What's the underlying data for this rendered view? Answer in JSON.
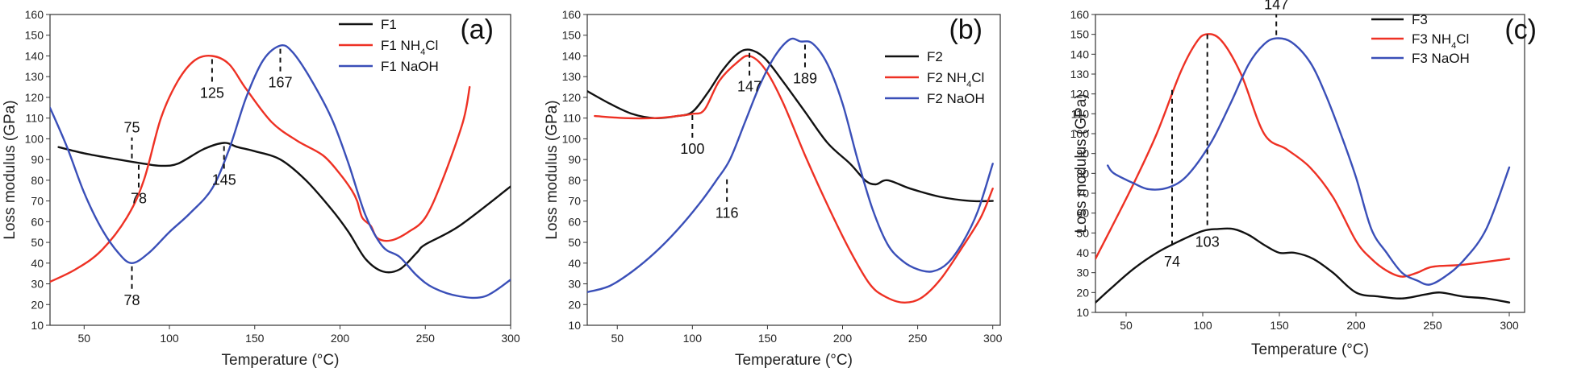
{
  "colors": {
    "black": "#111111",
    "red": "#ee3124",
    "blue": "#3a4fb8"
  },
  "chart_data": [
    {
      "type": "line",
      "panel_label": "(a)",
      "xlabel": "Temperature (°C)",
      "ylabel": "Loss modulus (GPa)",
      "xlim": [
        30,
        300
      ],
      "ylim": [
        10,
        160
      ],
      "xticks": [
        50,
        100,
        150,
        200,
        250,
        300
      ],
      "yticks": [
        10,
        20,
        30,
        40,
        50,
        60,
        70,
        80,
        90,
        100,
        110,
        120,
        130,
        140,
        150,
        160
      ],
      "legend_position": "top-right",
      "series": [
        {
          "name": "F1",
          "color": "black",
          "points": [
            [
              35,
              96
            ],
            [
              50,
              93
            ],
            [
              70,
              90
            ],
            [
              85,
              88
            ],
            [
              95,
              87
            ],
            [
              105,
              88
            ],
            [
              120,
              95
            ],
            [
              132,
              98
            ],
            [
              140,
              96
            ],
            [
              150,
              94
            ],
            [
              165,
              90
            ],
            [
              180,
              80
            ],
            [
              195,
              66
            ],
            [
              205,
              55
            ],
            [
              215,
              42
            ],
            [
              225,
              36
            ],
            [
              235,
              37
            ],
            [
              245,
              45
            ],
            [
              250,
              49
            ],
            [
              270,
              58
            ],
            [
              300,
              77
            ]
          ]
        },
        {
          "name": "F1 NH₄Cl",
          "color": "red",
          "points": [
            [
              30,
              31
            ],
            [
              45,
              37
            ],
            [
              60,
              46
            ],
            [
              75,
              62
            ],
            [
              85,
              80
            ],
            [
              95,
              110
            ],
            [
              105,
              128
            ],
            [
              115,
              138
            ],
            [
              125,
              140
            ],
            [
              135,
              136
            ],
            [
              145,
              124
            ],
            [
              160,
              108
            ],
            [
              175,
              99
            ],
            [
              190,
              92
            ],
            [
              200,
              83
            ],
            [
              207,
              75
            ],
            [
              210,
              70
            ],
            [
              213,
              62
            ],
            [
              218,
              58
            ],
            [
              222,
              52
            ],
            [
              230,
              51
            ],
            [
              240,
              55
            ],
            [
              250,
              62
            ],
            [
              260,
              80
            ],
            [
              272,
              108
            ],
            [
              276,
              125
            ]
          ]
        },
        {
          "name": "F1 NaOH",
          "color": "blue",
          "points": [
            [
              30,
              115
            ],
            [
              40,
              96
            ],
            [
              50,
              74
            ],
            [
              60,
              57
            ],
            [
              70,
              45
            ],
            [
              78,
              40
            ],
            [
              88,
              45
            ],
            [
              100,
              55
            ],
            [
              112,
              64
            ],
            [
              125,
              76
            ],
            [
              135,
              95
            ],
            [
              145,
              120
            ],
            [
              155,
              138
            ],
            [
              165,
              145
            ],
            [
              172,
              142
            ],
            [
              182,
              130
            ],
            [
              195,
              110
            ],
            [
              205,
              88
            ],
            [
              215,
              63
            ],
            [
              225,
              48
            ],
            [
              235,
              43
            ],
            [
              245,
              34
            ],
            [
              255,
              28
            ],
            [
              270,
              24
            ],
            [
              285,
              24
            ],
            [
              300,
              32
            ]
          ]
        }
      ],
      "annotations": [
        {
          "text": "75",
          "x": 78,
          "y": 89,
          "label_side": "above"
        },
        {
          "text": "78",
          "x": 82,
          "y": 89,
          "label_side": "below"
        },
        {
          "text": "125",
          "x": 125,
          "y": 140,
          "label_side": "below"
        },
        {
          "text": "145",
          "x": 132,
          "y": 98,
          "label_side": "below"
        },
        {
          "text": "167",
          "x": 165,
          "y": 145,
          "label_side": "below"
        },
        {
          "text": "78",
          "x": 78,
          "y": 40,
          "label_side": "below"
        }
      ]
    },
    {
      "type": "line",
      "panel_label": "(b)",
      "xlabel": "Temperature (°C)",
      "ylabel": "Loss modulus (GPa)",
      "xlim": [
        30,
        305
      ],
      "ylim": [
        10,
        160
      ],
      "xticks": [
        50,
        100,
        150,
        200,
        250,
        300
      ],
      "yticks": [
        10,
        20,
        30,
        40,
        50,
        60,
        70,
        80,
        90,
        100,
        110,
        120,
        130,
        140,
        150,
        160
      ],
      "legend_position": "top-right",
      "series": [
        {
          "name": "F2",
          "color": "black",
          "points": [
            [
              30,
              123
            ],
            [
              45,
              117
            ],
            [
              60,
              112
            ],
            [
              75,
              110
            ],
            [
              90,
              111
            ],
            [
              100,
              113
            ],
            [
              110,
              122
            ],
            [
              120,
              133
            ],
            [
              130,
              141
            ],
            [
              138,
              143
            ],
            [
              148,
              139
            ],
            [
              160,
              128
            ],
            [
              175,
              113
            ],
            [
              190,
              98
            ],
            [
              205,
              88
            ],
            [
              215,
              80
            ],
            [
              222,
              78
            ],
            [
              230,
              80
            ],
            [
              245,
              76
            ],
            [
              265,
              72
            ],
            [
              285,
              70
            ],
            [
              300,
              70
            ]
          ]
        },
        {
          "name": "F2 NH₄Cl",
          "color": "red",
          "points": [
            [
              35,
              111
            ],
            [
              55,
              110
            ],
            [
              75,
              110
            ],
            [
              90,
              111
            ],
            [
              100,
              112
            ],
            [
              108,
              114
            ],
            [
              118,
              128
            ],
            [
              130,
              137
            ],
            [
              138,
              140
            ],
            [
              148,
              134
            ],
            [
              160,
              118
            ],
            [
              175,
              92
            ],
            [
              190,
              68
            ],
            [
              205,
              46
            ],
            [
              218,
              30
            ],
            [
              228,
              24
            ],
            [
              240,
              21
            ],
            [
              252,
              23
            ],
            [
              265,
              32
            ],
            [
              280,
              48
            ],
            [
              292,
              62
            ],
            [
              300,
              76
            ]
          ]
        },
        {
          "name": "F2 NaOH",
          "color": "blue",
          "points": [
            [
              30,
              26
            ],
            [
              45,
              29
            ],
            [
              60,
              36
            ],
            [
              75,
              45
            ],
            [
              90,
              56
            ],
            [
              105,
              69
            ],
            [
              116,
              80
            ],
            [
              125,
              90
            ],
            [
              135,
              108
            ],
            [
              145,
              126
            ],
            [
              155,
              140
            ],
            [
              165,
              148
            ],
            [
              172,
              147
            ],
            [
              180,
              146
            ],
            [
              190,
              136
            ],
            [
              200,
              117
            ],
            [
              210,
              90
            ],
            [
              220,
              66
            ],
            [
              230,
              49
            ],
            [
              240,
              41
            ],
            [
              250,
              37
            ],
            [
              260,
              36
            ],
            [
              270,
              40
            ],
            [
              280,
              50
            ],
            [
              290,
              65
            ],
            [
              300,
              88
            ]
          ]
        }
      ],
      "annotations": [
        {
          "text": "100",
          "x": 100,
          "y": 113,
          "label_side": "below"
        },
        {
          "text": "147",
          "x": 138,
          "y": 143,
          "label_side": "below"
        },
        {
          "text": "189",
          "x": 175,
          "y": 147,
          "label_side": "below"
        },
        {
          "text": "116",
          "x": 123,
          "y": 82,
          "label_side": "below"
        }
      ]
    },
    {
      "type": "line",
      "panel_label": "(c)",
      "xlabel": "Temperature (°C)",
      "ylabel": "Loss modulus (GPa)",
      "xlim": [
        30,
        310
      ],
      "ylim": [
        10,
        160
      ],
      "xticks": [
        50,
        100,
        150,
        200,
        250,
        300
      ],
      "yticks": [
        10,
        20,
        30,
        40,
        50,
        60,
        70,
        80,
        90,
        100,
        110,
        120,
        130,
        140,
        150,
        160
      ],
      "legend_position": "top-right",
      "series": [
        {
          "name": "F3",
          "color": "black",
          "points": [
            [
              30,
              15
            ],
            [
              40,
              22
            ],
            [
              55,
              32
            ],
            [
              70,
              40
            ],
            [
              85,
              46
            ],
            [
              100,
              51
            ],
            [
              110,
              52
            ],
            [
              120,
              52
            ],
            [
              130,
              49
            ],
            [
              140,
              44
            ],
            [
              150,
              40
            ],
            [
              160,
              40
            ],
            [
              172,
              37
            ],
            [
              185,
              30
            ],
            [
              200,
              20
            ],
            [
              215,
              18
            ],
            [
              230,
              17
            ],
            [
              245,
              19
            ],
            [
              255,
              20
            ],
            [
              270,
              18
            ],
            [
              285,
              17
            ],
            [
              300,
              15
            ]
          ]
        },
        {
          "name": "F3 NH₄Cl",
          "color": "red",
          "points": [
            [
              30,
              37
            ],
            [
              40,
              52
            ],
            [
              55,
              75
            ],
            [
              70,
              100
            ],
            [
              85,
              130
            ],
            [
              95,
              145
            ],
            [
              102,
              150
            ],
            [
              112,
              147
            ],
            [
              125,
              130
            ],
            [
              140,
              100
            ],
            [
              155,
              92
            ],
            [
              170,
              83
            ],
            [
              185,
              68
            ],
            [
              200,
              46
            ],
            [
              210,
              37
            ],
            [
              220,
              31
            ],
            [
              230,
              28
            ],
            [
              240,
              30
            ],
            [
              250,
              33
            ],
            [
              270,
              34
            ],
            [
              300,
              37
            ]
          ]
        },
        {
          "name": "F3 NaOH",
          "color": "blue",
          "points": [
            [
              38,
              84
            ],
            [
              42,
              80
            ],
            [
              55,
              75
            ],
            [
              65,
              72
            ],
            [
              78,
              73
            ],
            [
              90,
              79
            ],
            [
              105,
              95
            ],
            [
              118,
              115
            ],
            [
              130,
              135
            ],
            [
              140,
              145
            ],
            [
              148,
              148
            ],
            [
              158,
              146
            ],
            [
              170,
              136
            ],
            [
              180,
              120
            ],
            [
              190,
              100
            ],
            [
              200,
              78
            ],
            [
              210,
              52
            ],
            [
              220,
              40
            ],
            [
              230,
              30
            ],
            [
              240,
              26
            ],
            [
              248,
              24
            ],
            [
              258,
              28
            ],
            [
              270,
              36
            ],
            [
              285,
              52
            ],
            [
              300,
              83
            ]
          ]
        }
      ],
      "annotations": [
        {
          "text": "74",
          "x": 80,
          "y": 122,
          "label_side": "below",
          "bottom": 42
        },
        {
          "text": "103",
          "x": 103,
          "y": 150,
          "label_side": "below",
          "bottom": 52
        },
        {
          "text": "147",
          "x": 148,
          "y": 148,
          "label_side": "above"
        }
      ]
    }
  ]
}
